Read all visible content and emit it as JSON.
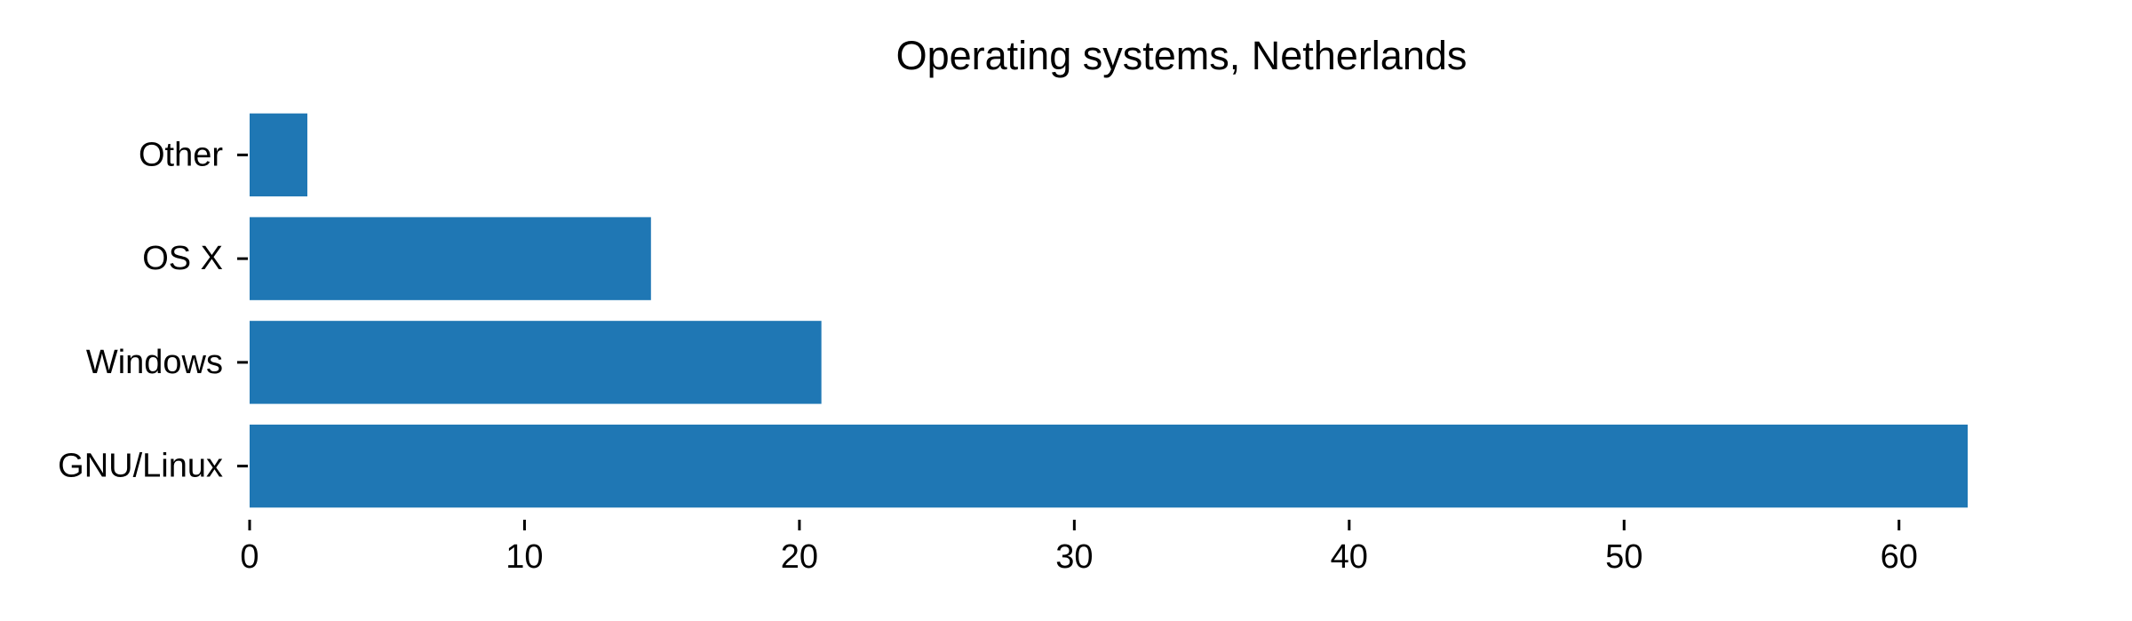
{
  "chart_data": {
    "type": "bar",
    "orientation": "horizontal",
    "title": "Operating systems, Netherlands",
    "xlabel": "",
    "ylabel": "",
    "categories": [
      "GNU/Linux",
      "Windows",
      "OS X",
      "Other"
    ],
    "values": [
      62.5,
      20.8,
      14.6,
      2.1
    ],
    "xlim": [
      0,
      65.6
    ],
    "xticks": [
      0,
      10,
      20,
      30,
      40,
      50,
      60
    ],
    "grid": false,
    "legend": "none",
    "bar_color": "#1f77b4",
    "text_color": "#000000",
    "background": "#ffffff"
  }
}
